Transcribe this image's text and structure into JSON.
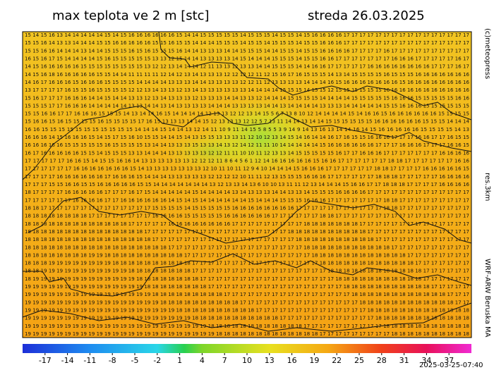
{
  "header": {
    "title": "max teplota ve 2 m [stc]",
    "date": "streda 26.03.2025"
  },
  "side": {
    "credit": "(c)meteopress",
    "resolution": "res.3km",
    "model": "WRF-ARW Beruska MA"
  },
  "footer": {
    "timestamp": "2025-03-25-07:40"
  },
  "grid": {
    "rows": [
      "15 14 15 16 13 14 14 14 14 14 15 14 15 16 16 16 16 16 16 15 14 14 15 15 15 15 15 14 15 15 15 14 15 15 14 15 16 16 16 16 17 17 17 17 17 17 17 17 17 17 17 17 17 17 17 17",
      "15 15 16 14 13 13 14 14 14 15 15 16 16 16 16 16 15 15 16 15 15 14 14 14 15 15 15 14 15 15 14 15 15 15 14 15 15 16 16 16 17 17 17 17 17 17 17 17 17 17 17 17 17 17 17 17",
      "15 15 16 16 14 14 14 13 14 14 15 15 15 16 15 16 15 15 15 16 14 14 13 13 13 14 14 15 15 15 14 14 15 15 14 15 15 16 16 16 16 17 17 17 17 16 17 17 17 17 17 17 17 17 17 17",
      "16 15 16 17 15 14 14 14 14 15 16 15 15 15 15 15 13 13 12 15 14 14 13 13 13 13 14 15 14 14 14 15 15 15 14 15 15 16 16 17 17 17 17 17 17 17 16 16 16 17 17 17 17 17 16 17",
      "14 15 16 16 16 16 16 15 15 15 15 15 15 15 15 13 12 12 13 14 14 14 12 11 13 13 12 13 13 14 14 15 15 15 14 14 16 16 17 17 17 17 17 16 16 16 16 16 16 16 16 17 17 17 16 17",
      "14 15 16 18 16 16 16 16 16 15 15 14 14 11 11 11 11 12 14 12 13 14 13 13 13 12 12 12 12 11 12 15 16 17 16 15 15 15 14 13 14 15 15 15 15 16 15 15 15 16 16 16 16 16 16 16",
      "14 16 17 16 16 16 15 16 16 16 15 15 15 15 14 14 14 14 13 13 13 14 14 13 13 13 13 12 12 11 12 13 13 13 13 14 14 14 16 15 16 16 16 16 16 16 16 15 16 16 16 16 16 16 16 16",
      "13 17 17 17 17 16 15 15 16 15 15 15 15 12 12 13 14 13 13 12 13 14 13 13 13 13 13 13 14 14 14 14 15 15 15 14 15 15 12 15 15 15 15 15 15 16 16 16 16 16 16 16 16 16 16 16",
      "15 16 17 17 17 16 16 16 14 14 15 14 14 13 13 12 13 14 13 13 13 12 13 13 13 14 14 13 13 12 14 14 14 15 15 15 15 14 14 14 14 15 15 15 15 15 16 16 16 15 15 15 15 15 16 16",
      "15 15 15 17 17 16 16 16 14 14 14 14 14 13 13 14 14 13 14 13 13 13 13 14 14 14 13 13 13 13 14 14 13 14 14 14 14 13 13 13 14 14 14 14 14 15 15 16 16 16 15 15 15 15 15 15",
      "15 15 16 16 17 17 16 16 16 15 15 15 14 13 14 14 16 15 14 14 14 14 12 13 13 12 12 13 14 15 5 6 7 13 8 10 12 14 14 14 14 15 14 16 16 15 16 16 16 16 16 16 15 15 15 15",
      "15 16 16 15 16 15 15 15 15 16 15 15 15 15 17 16 15 13 13 13 14 14 15 12 13 13 13 12 12 5 7 13 11 14 14 13 14 14 15 15 15 15 15 15 16 16 16 16 16 16 15 15 15 14 14 14",
      "16 16 15 15 15 15 15 15 15 15 15 15 15 14 14 14 15 14 14 13 12 14 11 10 9 11 14 15 5 8 5 5 3 9 14 9 14 13 16 13 14 14 16 14 15 16 16 16 16 16 15 15 15 15 14 13",
      "16 16 16 14 15 16 16 16 15 14 15 17 15 16 10 15 15 14 14 15 14 13 15 15 13 13 13 11 12 10 12 13 14 15 14 16 14 14 16 17 16 15 15 16 16 16 17 17 17 16 16 17 17 16 15 15",
      "16 16 16 16 16 15 15 15 15 15 16 15 15 15 15 13 14 14 13 13 13 15 13 13 14 13 12 14 12 11 11 10 14 14 14 14 14 15 16 16 16 16 16 16 17 17 17 16 16 16 17 17 17 16 16 15",
      "16 17 16 16 16 16 16 15 15 14 15 15 15 13 13 14 14 14 13 13 13 13 13 12 12 11 11 10 10 11 12 13 13 14 15 15 15 15 15 16 17 17 16 16 16 17 17 17 17 17 17 17 16 16 16 16",
      "17 17 17 17 17 16 16 15 14 15 15 16 16 14 13 13 13 13 13 13 12 12 12 11 8 6 4 5 6 1 12 14 16 16 16 16 16 15 16 16 17 17 17 17 17 17 18 18 17 17 17 17 17 17 16 16",
      "17 17 17 17 17 17 16 16 16 16 16 16 16 15 14 13 13 13 13 13 13 13 12 10 11 10 11 12 9 4 10 14 14 14 15 16 16 16 17 17 17 17 17 17 18 18 17 17 17 17 16 16 16 16 16 15",
      "17 17 17 17 16 16 16 16 16 16 17 16 16 16 15 14 14 14 13 13 13 13 13 12 12 12 12 10 11 11 12 13 15 15 15 16 16 16 17 17 17 17 17 17 18 18 18 17 17 17 17 17 16 16 16 16",
      "17 17 17 15 15 16 16 15 15 16 16 16 16 16 15 15 14 14 14 14 14 14 14 13 12 13 13 14 13 6 10 10 13 11 11 12 13 14 14 14 15 16 16 17 17 18 18 18 17 17 17 17 16 16 16 16",
      "18 17 17 17 17 16 16 16 16 16 17 17 17 16 17 15 14 14 14 14 14 15 14 14 14 14 13 14 13 13 13 14 14 13 13 14 15 15 15 16 16 16 16 17 17 17 17 17 17 17 17 17 17 17 17 17",
      "17 17 17 17 17 17 16 16 16 16 17 17 16 16 16 16 16 16 14 15 14 15 14 14 14 14 14 14 15 14 14 14 15 15 15 16 16 16 17 17 17 17 17 17 17 18 18 17 17 17 17 17 17 17 17 17",
      "18 18 17 17 17 17 17 17 17 17 17 17 17 17 17 17 15 15 15 15 14 15 15 15 15 15 16 16 16 16 16 16 16 16 17 17 17 17 17 17 17 17 17 17 17 18 18 17 17 17 17 17 17 17 17 17",
      "18 18 18 18 18 18 18 18 17 17 17 17 17 17 17 17 16 16 16 16 15 15 15 15 15 16 16 16 16 16 16 17 17 17 17 17 17 18 18 17 17 17 17 17 17 17 17 17 17 17 17 17 17 17 17 17",
      "18 18 18 18 18 18 18 18 18 18 18 18 18 17 17 17 17 17 16 16 16 16 16 16 16 16 17 17 17 17 17 17 17 17 17 18 18 18 18 18 18 18 17 17 17 17 17 17 17 17 17 17 17 17 17 17",
      "18 18 18 18 18 18 18 18 18 18 18 18 18 18 18 17 17 17 17 17 17 17 17 17 17 17 17 17 17 17 17 17 17 18 18 18 18 18 18 18 18 18 18 17 17 17 17 17 17 17 17 17 17 17 17 17",
      "18 18 18 18 18 18 18 18 18 18 18 18 18 18 18 18 17 17 17 17 17 17 17 17 17 17 17 17 17 17 17 17 17 17 18 18 18 18 18 18 18 18 18 18 17 17 17 17 17 17 17 17 17 17 17 17",
      "18 18 18 18 18 18 18 18 18 18 18 18 18 18 18 18 18 18 17 17 17 17 17 17 17 17 17 17 17 17 17 17 17 17 17 18 18 18 18 18 18 18 18 18 18 18 17 17 17 17 17 17 17 17 17 17",
      "18 18 18 18 18 18 18 18 19 19 18 18 18 18 18 18 18 18 18 18 17 17 17 17 17 17 17 17 17 17 17 17 17 17 17 17 18 18 18 18 18 18 18 18 18 18 18 18 17 17 17 17 17 17 17 17",
      "18 18 18 19 19 19 19 19 19 19 19 18 18 18 18 18 18 18 18 18 18 17 17 17 17 17 17 17 17 17 17 17 17 17 17 17 17 18 18 18 18 18 18 18 18 18 18 18 18 17 17 17 17 17 17 17",
      "18 18 19 19 19 19 19 19 19 19 19 19 19 18 18 18 18 18 18 18 18 17 17 17 17 17 17 17 17 17 17 17 17 17 17 17 17 17 18 18 18 18 18 18 18 18 18 18 18 18 17 17 17 17 17 17",
      "18 19 19 19 19 19 19 19 19 19 19 19 19 19 18 18 18 18 18 18 18 18 17 17 17 17 17 17 17 17 17 17 17 17 17 17 17 17 17 18 18 18 18 18 18 18 18 18 18 18 17 17 17 17 17 17",
      "19 19 19 19 19 19 19 19 19 19 19 19 19 19 19 18 18 18 18 18 18 18 18 17 17 17 17 17 17 17 17 17 17 17 17 17 17 17 17 17 18 18 18 18 18 18 18 18 18 18 18 17 17 17 17 17",
      "19 19 19 19 19 19 19 19 19 19 19 19 19 19 19 19 18 18 18 18 18 18 18 18 18 17 17 17 17 17 17 17 17 17 17 17 17 17 17 17 17 18 18 18 18 18 18 18 18 18 18 18 18 17 17 17",
      "19 19 19 19 19 19 19 19 19 19 19 19 19 19 19 19 19 18 18 18 18 18 18 18 18 18 18 17 17 17 17 17 17 17 17 17 17 17 17 17 17 17 18 18 18 18 18 18 18 18 18 18 18 18 17 17",
      "19 19 19 19 19 19 19 19 19 19 19 19 19 19 19 19 19 19 19 18 18 18 18 18 18 18 18 18 18 17 17 17 17 17 17 17 17 17 17 17 17 17 17 18 18 18 18 18 18 18 18 18 18 18 18 18",
      "19 19 19 19 19 19 19 19 19 19 19 19 19 19 19 19 19 19 19 19 19 18 18 18 18 18 18 18 18 18 18 18 17 17 17 17 17 17 17 17 17 17 17 17 18 18 18 18 18 18 18 18 18 18 18 18",
      "19 19 19 19 19 19 19 19 19 19 19 19 19 19 19 19 19 19 19 19 19 19 19 18 18 18 18 18 18 18 18 18 18 18 18 17 17 17 17 17 17 17 17 17 17 18 18 18 18 18 18 18 18 18 18 18",
      "19 19 19 19 19 19 19 19 19 19 19 19 19 19 19 19 19 19 19 19 19 19 19 19 18 18 18 18 18 18 18 18 18 18 18 18 18 17 17 17 17 17 17 17 17 17 18 18 18 18 18 18 18 18 18 18"
    ]
  },
  "colorbar": {
    "lim": [
      -20,
      40
    ],
    "ticks": [
      -17,
      -14,
      -11,
      -8,
      -5,
      -2,
      1,
      4,
      7,
      10,
      13,
      16,
      19,
      22,
      25,
      28,
      31,
      34,
      37
    ]
  }
}
